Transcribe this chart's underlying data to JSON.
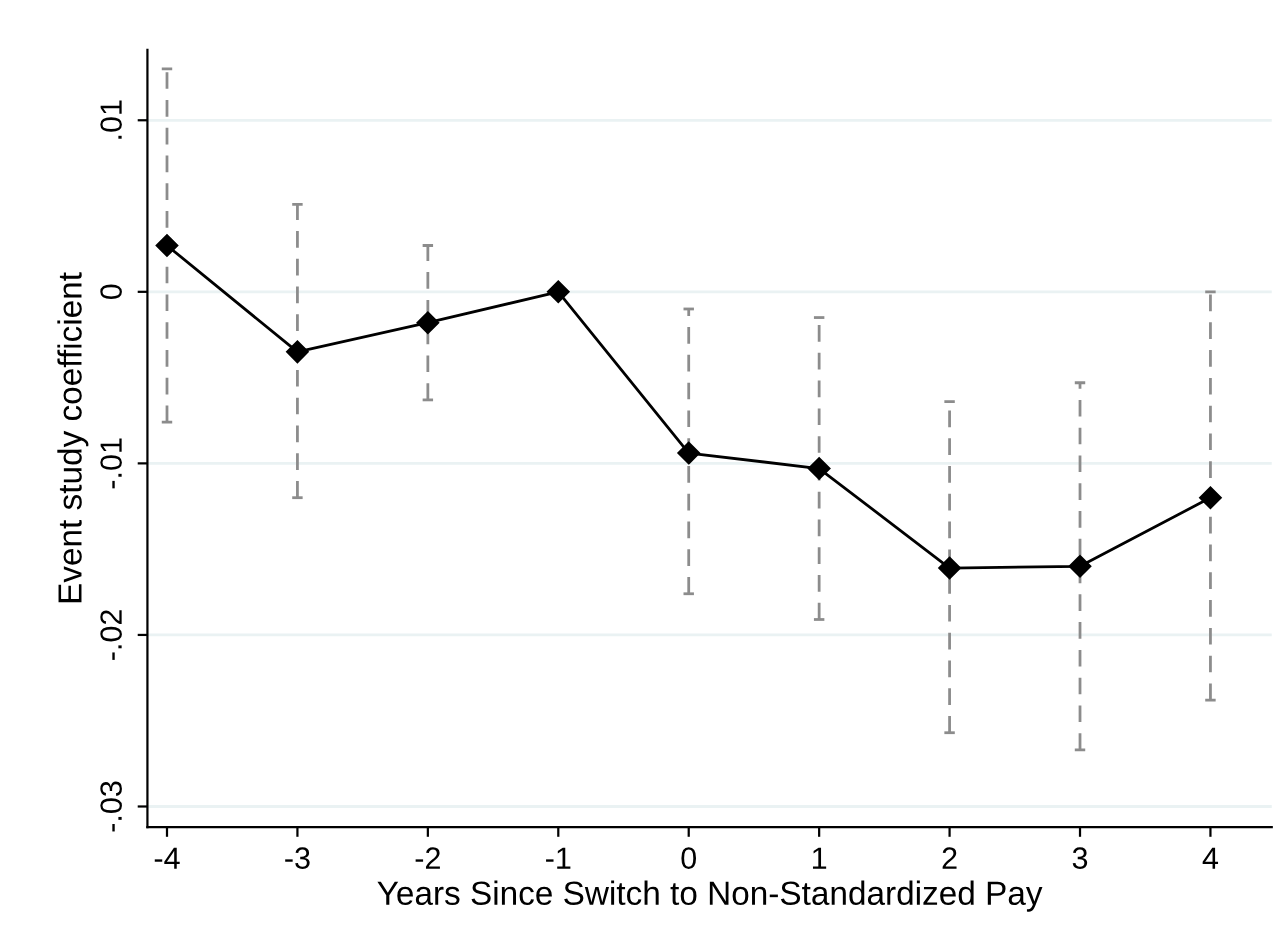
{
  "chart_data": {
    "type": "line",
    "xlabel": "Years Since Switch to Non-Standardized Pay",
    "ylabel": "Event study coefficient",
    "x": [
      -4,
      -3,
      -2,
      -1,
      0,
      1,
      2,
      3,
      4
    ],
    "series": [
      {
        "color": "#000000",
        "values": [
          0.0027,
          -0.0035,
          -0.0018,
          0.0,
          -0.0094,
          -0.0103,
          -0.0161,
          -0.016,
          -0.012
        ],
        "errors": [
          [
            -0.0076,
            0.013
          ],
          [
            -0.012,
            0.0051
          ],
          [
            -0.0063,
            0.0027
          ],
          null,
          [
            -0.0176,
            -0.001
          ],
          [
            -0.0191,
            -0.0015
          ],
          [
            -0.0257,
            -0.0064
          ],
          [
            -0.0267,
            -0.0053
          ],
          [
            -0.0238,
            0.0
          ]
        ]
      }
    ],
    "marker": "diamond",
    "line_style": "solid",
    "grid": "y",
    "xlim": [
      -4.15,
      4.47
    ],
    "xticks": [
      -4,
      -3,
      -2,
      -1,
      0,
      1,
      2,
      3,
      4
    ],
    "ylim": [
      -0.0312,
      0.0141
    ],
    "yticks": [
      {
        "value": -0.03,
        "label": "-.03"
      },
      {
        "value": -0.02,
        "label": "-.02"
      },
      {
        "value": -0.01,
        "label": "-.01"
      },
      {
        "value": 0,
        "label": "0"
      },
      {
        "value": 0.01,
        "label": ".01"
      }
    ]
  }
}
